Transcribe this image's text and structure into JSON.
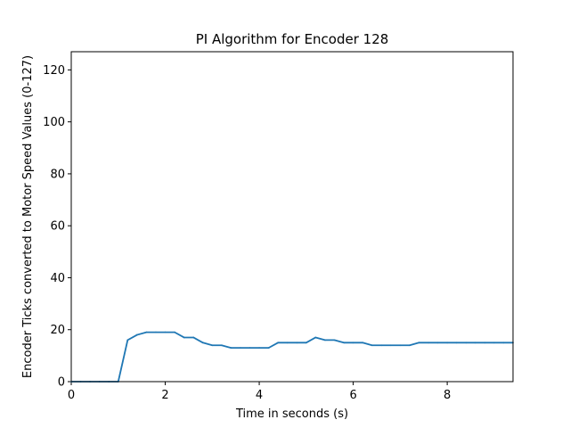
{
  "chart_data": {
    "type": "line",
    "title": "PI Algorithm for Encoder 128",
    "xlabel": "Time in seconds (s)",
    "ylabel": "Encoder Ticks converted to Motor Speed Values (0-127)",
    "xlim": [
      0,
      9.4
    ],
    "ylim": [
      0,
      127
    ],
    "xticks": [
      0,
      2,
      4,
      6,
      8
    ],
    "yticks": [
      0,
      20,
      40,
      60,
      80,
      100,
      120
    ],
    "grid": false,
    "line_color": "#1f77b4",
    "series": [
      {
        "x": [
          0,
          0.2,
          0.4,
          0.6,
          0.8,
          1.0,
          1.2,
          1.4,
          1.6,
          1.8,
          2.0,
          2.2,
          2.4,
          2.6,
          2.8,
          3.0,
          3.2,
          3.4,
          3.6,
          3.8,
          4.0,
          4.2,
          4.4,
          4.6,
          4.8,
          5.0,
          5.2,
          5.4,
          5.6,
          5.8,
          6.0,
          6.2,
          6.4,
          6.6,
          6.8,
          7.0,
          7.2,
          7.4,
          7.6,
          7.8,
          8.0,
          8.2,
          8.4,
          8.6,
          8.8,
          9.0,
          9.2,
          9.4
        ],
        "y": [
          0,
          0,
          0,
          0,
          0,
          0,
          16,
          18,
          19,
          19,
          19,
          19,
          17,
          17,
          15,
          14,
          14,
          13,
          13,
          13,
          13,
          13,
          15,
          15,
          15,
          15,
          17,
          16,
          16,
          15,
          15,
          15,
          14,
          14,
          14,
          14,
          14,
          15,
          15,
          15,
          15,
          15,
          15,
          15,
          15,
          15,
          15,
          15
        ]
      }
    ]
  }
}
